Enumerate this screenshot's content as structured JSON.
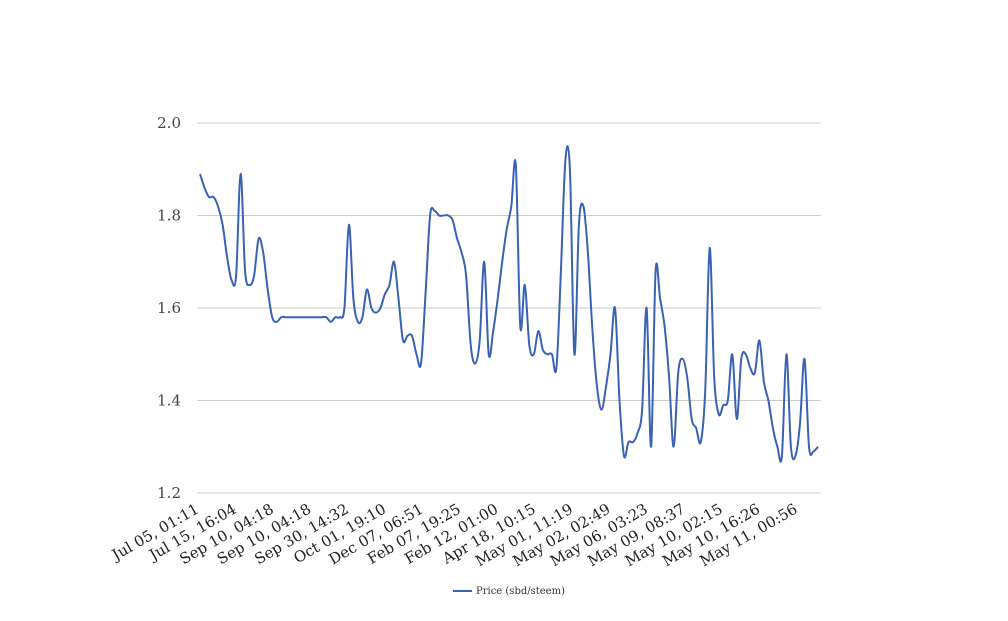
{
  "chart_data": {
    "type": "line",
    "title": "",
    "xlabel": "",
    "ylabel": "",
    "ylim": [
      1.2,
      2.0
    ],
    "yticks": [
      "1.2",
      "1.4",
      "1.6",
      "1.8",
      "2.0"
    ],
    "grid": true,
    "legend_position": "bottom-center",
    "colors": {
      "series": "#3a62b4",
      "grid": "#cccccc"
    },
    "x_tick_labels": [
      "Jul 05, 01:11",
      "Jul 15, 16:04",
      "Sep 10, 04:18",
      "Sep 10, 04:18",
      "Sep 30, 14:32",
      "Oct 01, 19:10",
      "Dec 07, 06:51",
      "Feb 07, 19:25",
      "Feb 12, 01:00",
      "Apr 18, 10:15",
      "May 01, 11:19",
      "May 02, 02:49",
      "May 06, 03:23",
      "May 09, 08:37",
      "May 10, 02:15",
      "May 10, 16:26",
      "May 11, 00:56"
    ],
    "series": [
      {
        "name": "Price (sbd/steem)",
        "values": [
          1.89,
          1.86,
          1.84,
          1.84,
          1.82,
          1.78,
          1.71,
          1.66,
          1.67,
          1.89,
          1.68,
          1.65,
          1.67,
          1.75,
          1.72,
          1.64,
          1.58,
          1.57,
          1.58,
          1.58,
          1.58,
          1.58,
          1.58,
          1.58,
          1.58,
          1.58,
          1.58,
          1.58,
          1.58,
          1.57,
          1.58,
          1.58,
          1.6,
          1.78,
          1.62,
          1.57,
          1.58,
          1.64,
          1.6,
          1.59,
          1.6,
          1.63,
          1.65,
          1.7,
          1.62,
          1.53,
          1.54,
          1.54,
          1.5,
          1.48,
          1.63,
          1.8,
          1.81,
          1.8,
          1.8,
          1.8,
          1.79,
          1.75,
          1.72,
          1.67,
          1.52,
          1.48,
          1.53,
          1.7,
          1.5,
          1.55,
          1.62,
          1.7,
          1.77,
          1.82,
          1.91,
          1.56,
          1.65,
          1.52,
          1.5,
          1.55,
          1.51,
          1.5,
          1.5,
          1.47,
          1.68,
          1.92,
          1.9,
          1.5,
          1.78,
          1.82,
          1.72,
          1.55,
          1.43,
          1.38,
          1.43,
          1.5,
          1.6,
          1.4,
          1.28,
          1.31,
          1.31,
          1.33,
          1.38,
          1.6,
          1.3,
          1.68,
          1.62,
          1.56,
          1.45,
          1.3,
          1.46,
          1.49,
          1.45,
          1.36,
          1.34,
          1.31,
          1.42,
          1.73,
          1.45,
          1.37,
          1.39,
          1.4,
          1.5,
          1.36,
          1.49,
          1.5,
          1.47,
          1.46,
          1.53,
          1.44,
          1.4,
          1.34,
          1.3,
          1.28,
          1.5,
          1.3,
          1.28,
          1.35,
          1.49,
          1.3,
          1.29,
          1.3
        ]
      }
    ]
  }
}
